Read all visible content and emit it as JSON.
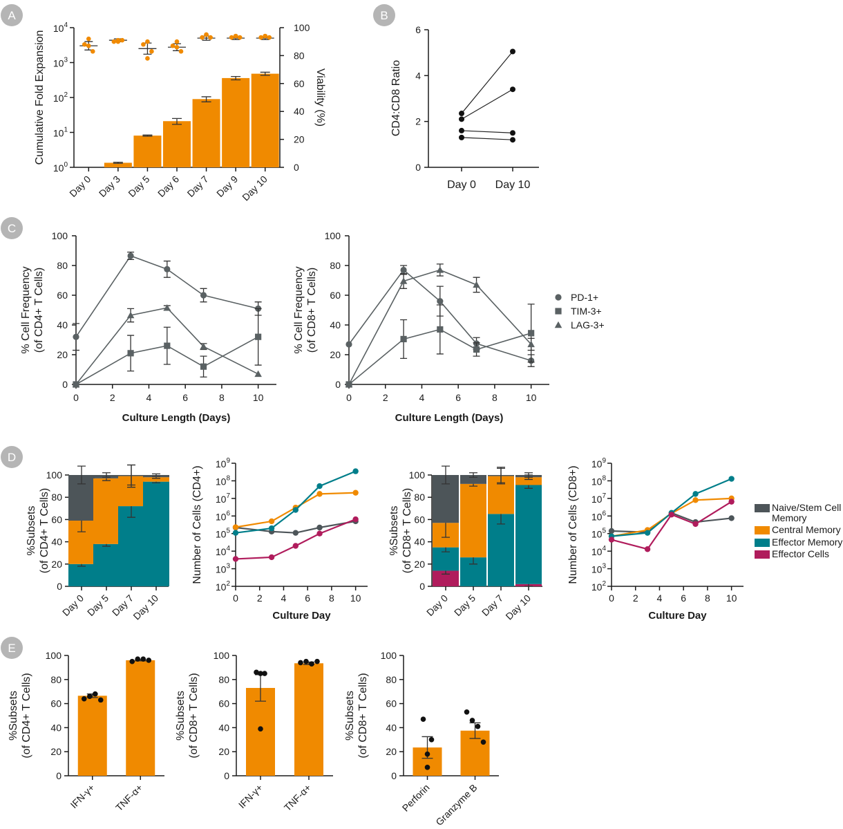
{
  "colors": {
    "orange": "#f08a00",
    "teal": "#007e8a",
    "gray": "#4d5559",
    "magenta": "#b01c5c",
    "line_gray": "#5a6163",
    "badge": "#b5b5b5"
  },
  "panel_labels": [
    "A",
    "B",
    "C",
    "D",
    "E"
  ],
  "legend_c": [
    {
      "label": "PD-1+",
      "marker": "circle"
    },
    {
      "label": "TIM-3+",
      "marker": "square"
    },
    {
      "label": "LAG-3+",
      "marker": "triangle"
    }
  ],
  "legend_d": [
    {
      "label": "Naive/Stem Cell",
      "label2": "Memory",
      "color": "#4d5559"
    },
    {
      "label": "Central Memory",
      "color": "#f08a00"
    },
    {
      "label": "Effector Memory",
      "color": "#007e8a"
    },
    {
      "label": "Effector Cells",
      "color": "#b01c5c"
    }
  ],
  "chart_data": [
    {
      "id": "A",
      "type": "bar",
      "categories": [
        "Day 0",
        "Day 3",
        "Day 5",
        "Day 6",
        "Day 7",
        "Day 9",
        "Day 10"
      ],
      "ylabel": "Cumulative Fold Expansion",
      "yscale": "log",
      "ylim": [
        1,
        10000
      ],
      "yticks": [
        {
          "base": "10",
          "exp": "0"
        },
        {
          "base": "10",
          "exp": "1"
        },
        {
          "base": "10",
          "exp": "2"
        },
        {
          "base": "10",
          "exp": "3"
        },
        {
          "base": "10",
          "exp": "4"
        }
      ],
      "values": [
        1,
        1.35,
        8.1,
        21,
        90,
        360,
        480
      ],
      "errors": [
        0,
        0.05,
        0.3,
        4,
        15,
        40,
        50
      ],
      "y2label": "Viability (%)",
      "y2lim": [
        0,
        100
      ],
      "y2ticks": [
        "0",
        "20",
        "40",
        "60",
        "80",
        "100"
      ],
      "viability_points": [
        [
          92,
          88,
          83,
          87
        ],
        [
          91,
          90,
          91,
          90
        ],
        [
          90,
          88,
          83,
          78
        ],
        [
          90,
          87,
          83,
          86
        ],
        [
          95,
          93,
          93,
          95
        ],
        [
          94,
          93,
          93,
          94
        ],
        [
          94,
          93,
          93,
          94
        ]
      ],
      "viability_mean": [
        87,
        91,
        85,
        86,
        92.5,
        92.5,
        92.5
      ],
      "viability_sem": [
        3,
        1,
        4,
        2.5,
        1.5,
        1,
        1
      ]
    },
    {
      "id": "B",
      "type": "line",
      "categories": [
        "Day 0",
        "Day 10"
      ],
      "ylabel": "CD4:CD8 Ratio",
      "ylim": [
        0,
        6
      ],
      "yticks": [
        "0",
        "2",
        "4",
        "6"
      ],
      "pairs": [
        [
          2.35,
          5.05
        ],
        [
          2.1,
          3.4
        ],
        [
          1.6,
          1.5
        ],
        [
          1.3,
          1.2
        ]
      ]
    },
    {
      "id": "C1",
      "type": "line",
      "xlabel": "Culture Length (Days)",
      "ylabel": "% Cell Frequency",
      "ylabel2": "(of CD4+ T Cells)",
      "xlim": [
        0,
        11
      ],
      "ylim": [
        0,
        100
      ],
      "xticks": [
        "0",
        "2",
        "4",
        "6",
        "8",
        "10"
      ],
      "yticks": [
        "0",
        "20",
        "40",
        "60",
        "80",
        "100"
      ],
      "x": [
        0,
        3,
        5,
        7,
        10
      ],
      "series": [
        {
          "name": "PD-1+",
          "values": [
            32,
            86.5,
            77.5,
            60,
            51
          ],
          "errors": [
            9,
            2.5,
            5.5,
            4.5,
            4.5
          ]
        },
        {
          "name": "TIM-3+",
          "values": [
            0,
            21,
            26,
            12,
            32
          ],
          "errors": [
            0,
            12,
            12.5,
            7,
            19
          ]
        },
        {
          "name": "LAG-3+",
          "values": [
            0,
            46.5,
            51.5,
            25.5,
            7
          ],
          "errors": [
            0,
            4.5,
            1.5,
            2,
            0
          ]
        }
      ]
    },
    {
      "id": "C2",
      "type": "line",
      "xlabel": "Culture Length (Days)",
      "ylabel": "% Cell Frequency",
      "ylabel2": "(of CD8+ T Cells)",
      "xlim": [
        0,
        11
      ],
      "ylim": [
        0,
        100
      ],
      "xticks": [
        "0",
        "2",
        "4",
        "6",
        "8",
        "10"
      ],
      "yticks": [
        "0",
        "20",
        "40",
        "60",
        "80",
        "100"
      ],
      "x": [
        0,
        3,
        5,
        7,
        10
      ],
      "series": [
        {
          "name": "PD-1+",
          "values": [
            27,
            77,
            56,
            27.5,
            16
          ],
          "errors": [
            0,
            3,
            10,
            4,
            4
          ]
        },
        {
          "name": "TIM-3+",
          "values": [
            0,
            30.5,
            37,
            23.5,
            34.5
          ],
          "errors": [
            0,
            13,
            16.5,
            4.5,
            19.5
          ]
        },
        {
          "name": "LAG-3+",
          "values": [
            0,
            69.5,
            77,
            67,
            27
          ],
          "errors": [
            0,
            5,
            4,
            5,
            4
          ]
        }
      ]
    },
    {
      "id": "D1",
      "type": "stacked-bar",
      "categories": [
        "Day 0",
        "Day 5",
        "Day 7",
        "Day 10"
      ],
      "ylabel": "%Subsets",
      "ylabel2": "(of CD4+ T Cells)",
      "ylim": [
        0,
        100
      ],
      "yticks": [
        "0",
        "20",
        "40",
        "60",
        "80",
        "100"
      ],
      "series": [
        {
          "name": "Effector Cells",
          "values": [
            0,
            0,
            0,
            0
          ],
          "errors": [
            0,
            0,
            0,
            0
          ]
        },
        {
          "name": "Effector Memory",
          "values": [
            20,
            38,
            72,
            94
          ],
          "errors": [
            2,
            2,
            10,
            1
          ]
        },
        {
          "name": "Central Memory",
          "values": [
            39,
            59,
            27,
            4
          ],
          "errors": [
            10,
            2,
            10,
            1
          ]
        },
        {
          "name": "Naive/Stem Cell Memory",
          "values": [
            41,
            3,
            1,
            2
          ],
          "errors": [
            8,
            2,
            9,
            1
          ]
        }
      ]
    },
    {
      "id": "D2",
      "type": "line",
      "xlabel": "Culture Day",
      "ylabel": "Number of Cells (CD4+)",
      "yscale": "log",
      "ylim": [
        100,
        1000000000
      ],
      "xlim": [
        0,
        11
      ],
      "xticks": [
        "0",
        "2",
        "4",
        "6",
        "8",
        "10"
      ],
      "yticks": [
        {
          "base": "10",
          "exp": "2"
        },
        {
          "base": "10",
          "exp": "3"
        },
        {
          "base": "10",
          "exp": "4"
        },
        {
          "base": "10",
          "exp": "5"
        },
        {
          "base": "10",
          "exp": "6"
        },
        {
          "base": "10",
          "exp": "7"
        },
        {
          "base": "10",
          "exp": "8"
        },
        {
          "base": "10",
          "exp": "9"
        }
      ],
      "x": [
        0,
        3,
        5,
        7,
        10
      ],
      "series": [
        {
          "name": "Naive/Stem Cell Memory",
          "values": [
            220000,
            130000,
            110000,
            220000,
            500000
          ]
        },
        {
          "name": "Central Memory",
          "values": [
            230000,
            500000,
            3000000,
            18000000,
            21000000
          ]
        },
        {
          "name": "Effector Memory",
          "values": [
            110000,
            200000,
            2200000,
            50000000,
            350000000
          ]
        },
        {
          "name": "Effector Cells",
          "values": [
            3600,
            4500,
            20000,
            100000,
            650000
          ]
        }
      ]
    },
    {
      "id": "D3",
      "type": "stacked-bar",
      "categories": [
        "Day 0",
        "Day 5",
        "Day 7",
        "Day 10"
      ],
      "ylabel": "%Subsets",
      "ylabel2": "(of CD8+ T Cells)",
      "ylim": [
        0,
        100
      ],
      "yticks": [
        "0",
        "20",
        "40",
        "60",
        "80",
        "100"
      ],
      "series": [
        {
          "name": "Effector Cells",
          "values": [
            14,
            0,
            0,
            2
          ],
          "errors": [
            3,
            0,
            1,
            2
          ]
        },
        {
          "name": "Effector Memory",
          "values": [
            21,
            26,
            65,
            89
          ],
          "errors": [
            4,
            6,
            9,
            3
          ]
        },
        {
          "name": "Central Memory",
          "values": [
            22,
            66,
            34,
            7
          ],
          "errors": [
            13,
            2,
            7,
            2
          ]
        },
        {
          "name": "Naive/Stem Cell Memory",
          "values": [
            43,
            8,
            1,
            2
          ],
          "errors": [
            8,
            2,
            7,
            2
          ]
        }
      ]
    },
    {
      "id": "D4",
      "type": "line",
      "xlabel": "Culture Day",
      "ylabel": "Number of Cells (CD8+)",
      "yscale": "log",
      "ylim": [
        100,
        1000000000
      ],
      "xlim": [
        0,
        11
      ],
      "xticks": [
        "0",
        "2",
        "4",
        "6",
        "8",
        "10"
      ],
      "yticks": [
        {
          "base": "10",
          "exp": "2"
        },
        {
          "base": "10",
          "exp": "3"
        },
        {
          "base": "10",
          "exp": "4"
        },
        {
          "base": "10",
          "exp": "5"
        },
        {
          "base": "10",
          "exp": "6"
        },
        {
          "base": "10",
          "exp": "7"
        },
        {
          "base": "10",
          "exp": "8"
        },
        {
          "base": "10",
          "exp": "9"
        }
      ],
      "x": [
        0,
        3,
        5,
        7,
        10
      ],
      "series": [
        {
          "name": "Naive/Stem Cell Memory",
          "values": [
            140000,
            120000,
            1500000,
            450000,
            750000
          ]
        },
        {
          "name": "Central Memory",
          "values": [
            70000,
            160000,
            1400000,
            8000000,
            10000000
          ]
        },
        {
          "name": "Effector Memory",
          "values": [
            70000,
            110000,
            1500000,
            18000000,
            130000000
          ]
        },
        {
          "name": "Effector Cells",
          "values": [
            45000,
            13000,
            1200000,
            350000,
            6500000
          ]
        }
      ]
    },
    {
      "id": "E1",
      "type": "bar",
      "categories": [
        "IFN-γ+",
        "TNF-α+"
      ],
      "ylabel": "%Subsets",
      "ylabel2": "(of CD4+ T Cells)",
      "ylim": [
        0,
        100
      ],
      "yticks": [
        "0",
        "20",
        "40",
        "60",
        "80",
        "100"
      ],
      "values": [
        66.5,
        96
      ],
      "errors": [
        1.5,
        0.5
      ],
      "points": [
        [
          64,
          66,
          68,
          63
        ],
        [
          95,
          97,
          97,
          96
        ]
      ]
    },
    {
      "id": "E2",
      "type": "bar",
      "categories": [
        "IFN-γ+",
        "TNF-α+"
      ],
      "ylabel": "%Subsets",
      "ylabel2": "(of CD8+ T Cells)",
      "ylim": [
        0,
        100
      ],
      "yticks": [
        "0",
        "20",
        "40",
        "60",
        "80",
        "100"
      ],
      "values": [
        73,
        93.5
      ],
      "errors": [
        11,
        1
      ],
      "points": [
        [
          86,
          85,
          39,
          85
        ],
        [
          94,
          95,
          93,
          95
        ]
      ]
    },
    {
      "id": "E3",
      "type": "bar",
      "categories": [
        "Perforin",
        "Granzyme B"
      ],
      "ylabel": "%Subsets",
      "ylabel2": "(of CD8+ T Cells)",
      "ylim": [
        0,
        100
      ],
      "yticks": [
        "0",
        "20",
        "40",
        "60",
        "80",
        "100"
      ],
      "values": [
        23.5,
        37.5
      ],
      "errors": [
        9,
        6.5
      ],
      "points": [
        [
          47,
          30,
          18,
          7
        ],
        [
          53,
          46,
          41,
          28
        ]
      ]
    }
  ]
}
